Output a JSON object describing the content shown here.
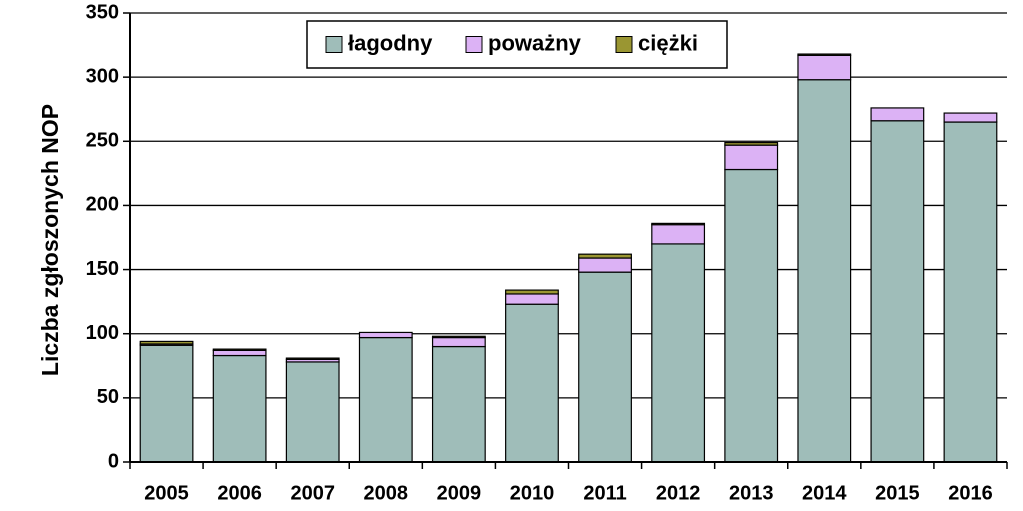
{
  "chart_data": {
    "type": "bar",
    "stacked": true,
    "title": "",
    "xlabel": "",
    "ylabel": "Liczba zgłoszonych NOP",
    "ylim": [
      0,
      350
    ],
    "yticks": [
      0,
      50,
      100,
      150,
      200,
      250,
      300,
      350
    ],
    "grid": "horizontal",
    "legend_position": "top-center",
    "categories": [
      "2005",
      "2006",
      "2007",
      "2008",
      "2009",
      "2010",
      "2011",
      "2012",
      "2013",
      "2014",
      "2015",
      "2016"
    ],
    "series": [
      {
        "name": "łagodny",
        "color": "#9fbdb9",
        "values": [
          91,
          83,
          78,
          97,
          90,
          123,
          148,
          170,
          228,
          298,
          266,
          265
        ]
      },
      {
        "name": "poważny",
        "color": "#dcb2f5",
        "values": [
          1,
          4,
          2,
          4,
          7,
          8,
          11,
          15,
          19,
          19,
          10,
          7
        ]
      },
      {
        "name": "ciężki",
        "color": "#9a9632",
        "values": [
          2,
          1,
          1,
          0,
          1,
          3,
          3,
          1,
          2,
          1,
          0,
          0
        ]
      }
    ]
  }
}
